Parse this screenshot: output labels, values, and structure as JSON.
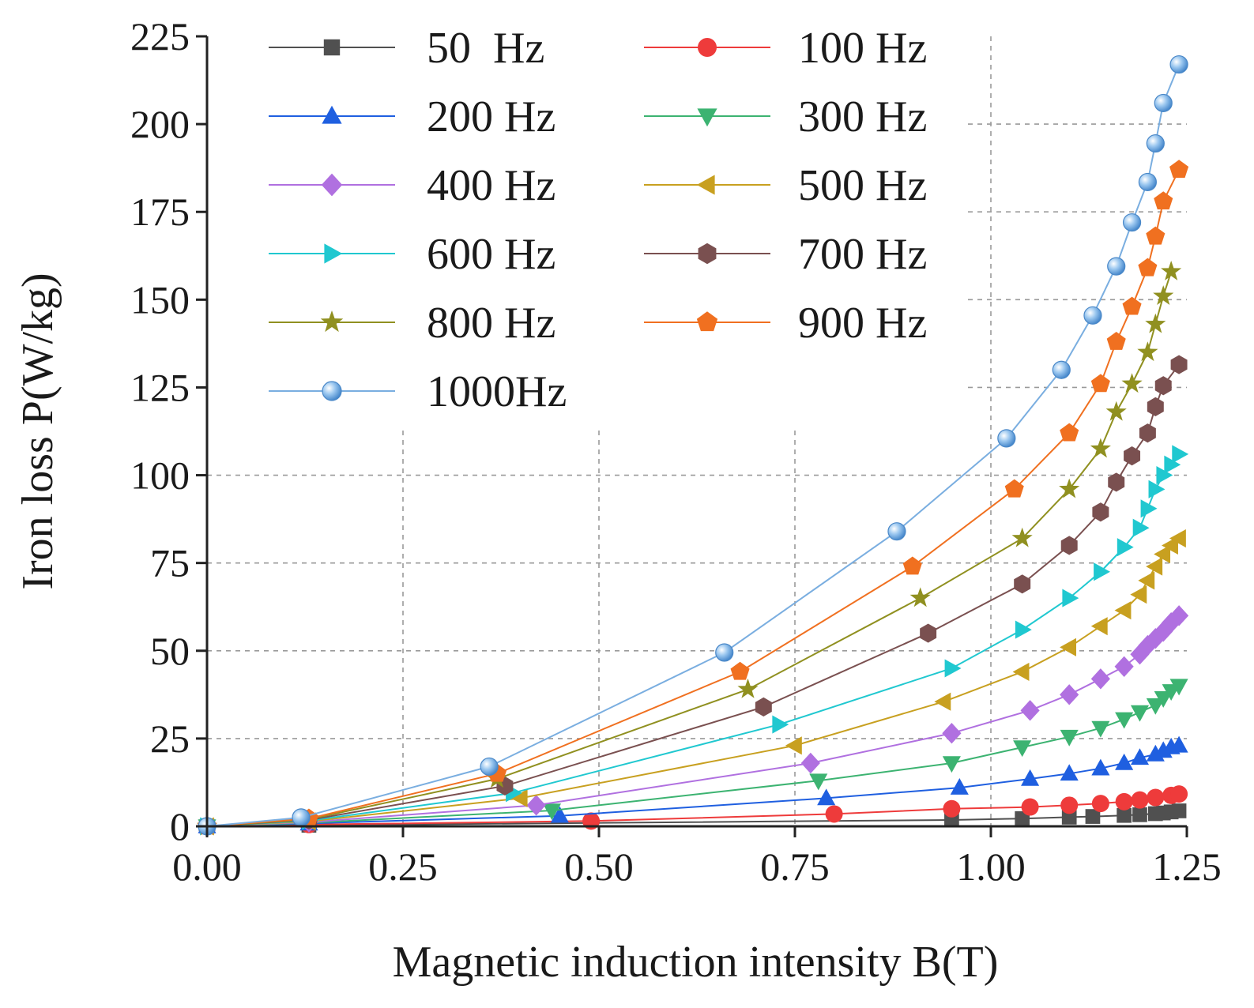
{
  "chart_data": {
    "type": "line",
    "title": "",
    "xlabel": "Magnetic induction intensity B(T)",
    "ylabel": "Iron loss P(W/kg)",
    "xlim": [
      0,
      1.25
    ],
    "ylim": [
      0,
      225
    ],
    "xticks": [
      "0.00",
      "0.25",
      "0.50",
      "0.75",
      "1.00",
      "1.25"
    ],
    "yticks": [
      "0",
      "25",
      "50",
      "75",
      "100",
      "125",
      "150",
      "175",
      "200",
      "225"
    ],
    "grid": true,
    "legend_position": "top-left",
    "series": [
      {
        "name": "50  Hz",
        "color": "#505050",
        "marker": "square",
        "x": [
          0,
          0.13,
          0.95,
          1.04,
          1.1,
          1.13,
          1.17,
          1.19,
          1.21,
          1.22,
          1.23,
          1.24
        ],
        "y": [
          0,
          0.3,
          1.8,
          2.2,
          2.6,
          2.8,
          3.1,
          3.3,
          3.6,
          3.8,
          4.1,
          4.4
        ]
      },
      {
        "name": "100 Hz",
        "color": "#ee3b3b",
        "marker": "circle",
        "x": [
          0,
          0.13,
          0.49,
          0.8,
          0.95,
          1.05,
          1.1,
          1.14,
          1.17,
          1.19,
          1.21,
          1.23,
          1.24
        ],
        "y": [
          0,
          0.5,
          1.5,
          3.5,
          5.0,
          5.5,
          6.0,
          6.5,
          7.0,
          7.5,
          8.2,
          8.8,
          9.2
        ]
      },
      {
        "name": "200 Hz",
        "color": "#1f5fe0",
        "marker": "triangle-up",
        "x": [
          0,
          0.13,
          0.45,
          0.79,
          0.96,
          1.05,
          1.1,
          1.14,
          1.17,
          1.19,
          1.21,
          1.22,
          1.23,
          1.24
        ],
        "y": [
          0,
          0.8,
          3.0,
          8.0,
          11.0,
          13.5,
          15.0,
          16.5,
          18.0,
          19.5,
          20.5,
          21.5,
          22.5,
          23.0
        ]
      },
      {
        "name": "300 Hz",
        "color": "#3cb371",
        "marker": "triangle-down",
        "x": [
          0,
          0.13,
          0.44,
          0.78,
          0.95,
          1.04,
          1.1,
          1.14,
          1.17,
          1.19,
          1.21,
          1.22,
          1.23,
          1.24
        ],
        "y": [
          0,
          1.0,
          4.5,
          13.0,
          18.0,
          22.5,
          25.5,
          28.0,
          30.5,
          32.5,
          34.5,
          36.5,
          38.5,
          40.0
        ]
      },
      {
        "name": "400 Hz",
        "color": "#b070e0",
        "marker": "diamond",
        "x": [
          0,
          0.13,
          0.42,
          0.77,
          0.95,
          1.05,
          1.1,
          1.14,
          1.17,
          1.19,
          1.2,
          1.21,
          1.22,
          1.23,
          1.24
        ],
        "y": [
          0,
          1.2,
          6.0,
          18.0,
          26.5,
          33.0,
          37.5,
          42.0,
          45.5,
          49.0,
          51.5,
          53.5,
          55.5,
          58.0,
          60.0
        ]
      },
      {
        "name": "500 Hz",
        "color": "#c8a020",
        "marker": "triangle-left",
        "x": [
          0,
          0.13,
          0.4,
          0.75,
          0.94,
          1.04,
          1.1,
          1.14,
          1.17,
          1.19,
          1.2,
          1.21,
          1.22,
          1.23,
          1.24
        ],
        "y": [
          0,
          1.4,
          8.0,
          23.0,
          35.5,
          44.0,
          51.0,
          57.0,
          61.5,
          66.0,
          70.0,
          74.0,
          77.5,
          80.0,
          82.0
        ]
      },
      {
        "name": "600 Hz",
        "color": "#20c8d0",
        "marker": "triangle-right",
        "x": [
          0,
          0.13,
          0.39,
          0.73,
          0.95,
          1.04,
          1.1,
          1.14,
          1.17,
          1.19,
          1.2,
          1.21,
          1.22,
          1.23,
          1.24
        ],
        "y": [
          0,
          1.6,
          9.5,
          29.0,
          45.0,
          56.0,
          65.0,
          72.5,
          79.5,
          85.0,
          90.5,
          96.0,
          100.0,
          103.0,
          106.0
        ]
      },
      {
        "name": "700 Hz",
        "color": "#7a5050",
        "marker": "hexagon",
        "x": [
          0,
          0.13,
          0.38,
          0.71,
          0.92,
          1.04,
          1.1,
          1.14,
          1.16,
          1.18,
          1.2,
          1.21,
          1.22,
          1.24
        ],
        "y": [
          0,
          1.8,
          11.5,
          34.0,
          55.0,
          69.0,
          80.0,
          89.5,
          98.0,
          105.5,
          112.0,
          119.5,
          125.5,
          131.5
        ]
      },
      {
        "name": "800 Hz",
        "color": "#909020",
        "marker": "star",
        "x": [
          0,
          0.13,
          0.37,
          0.69,
          0.91,
          1.04,
          1.1,
          1.14,
          1.16,
          1.18,
          1.2,
          1.21,
          1.22,
          1.23
        ],
        "y": [
          0,
          2.0,
          13.5,
          39.0,
          65.0,
          82.0,
          96.0,
          107.5,
          118.0,
          126.0,
          135.0,
          143.0,
          151.0,
          158.0
        ]
      },
      {
        "name": "900 Hz",
        "color": "#f07020",
        "marker": "pentagon",
        "x": [
          0,
          0.13,
          0.37,
          0.68,
          0.9,
          1.03,
          1.1,
          1.14,
          1.16,
          1.18,
          1.2,
          1.21,
          1.22,
          1.24
        ],
        "y": [
          0,
          2.2,
          15.0,
          44.0,
          74.0,
          96.0,
          112.0,
          126.0,
          138.0,
          148.0,
          159.0,
          168.0,
          178.0,
          187.0
        ]
      },
      {
        "name": "1000Hz",
        "color": "#7aaee0",
        "marker": "sphere",
        "x": [
          0,
          0.12,
          0.36,
          0.66,
          0.88,
          1.02,
          1.09,
          1.13,
          1.16,
          1.18,
          1.2,
          1.21,
          1.22,
          1.24
        ],
        "y": [
          0,
          2.5,
          17.0,
          49.5,
          84.0,
          110.5,
          130.0,
          145.5,
          159.5,
          172.0,
          183.5,
          194.5,
          206.0,
          217.0
        ]
      }
    ]
  }
}
